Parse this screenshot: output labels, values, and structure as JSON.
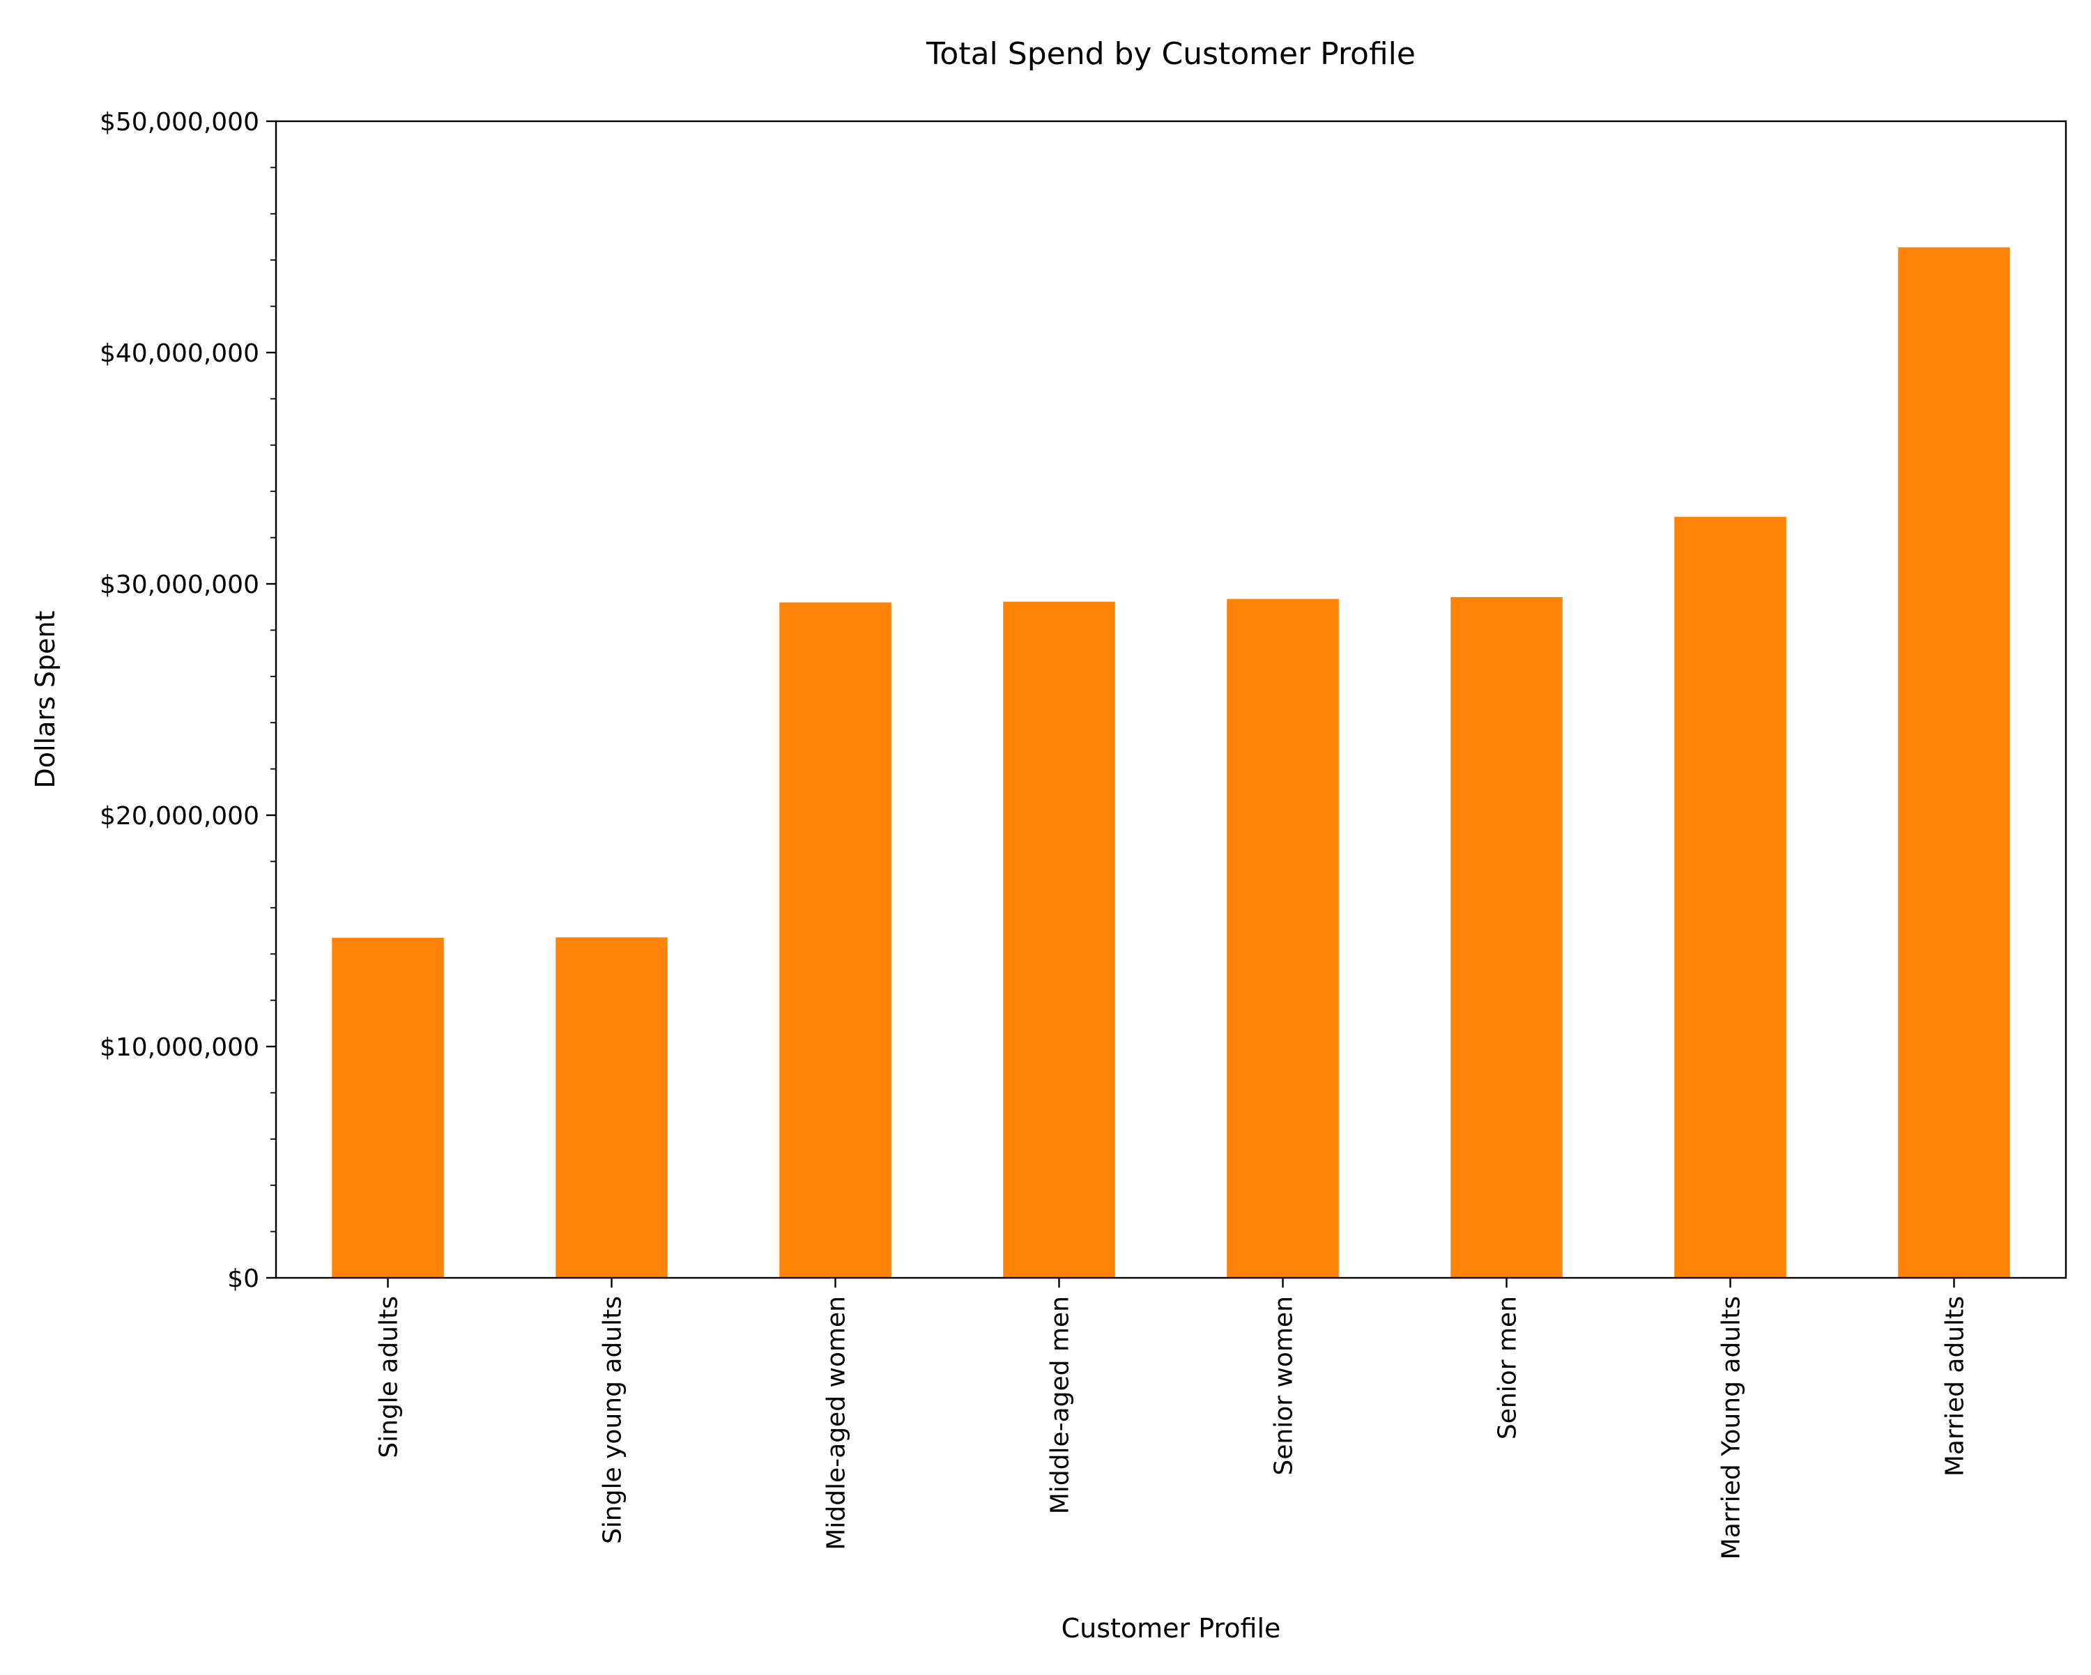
{
  "chart_data": {
    "type": "bar",
    "title": "Total Spend by Customer Profile",
    "xlabel": "Customer Profile",
    "ylabel": "Dollars Spent",
    "categories": [
      "Single adults",
      "Single young adults",
      "Middle-aged women",
      "Middle-aged men",
      "Senior women",
      "Senior men",
      "Married Young adults",
      "Married adults"
    ],
    "values": [
      14700000,
      14720000,
      29200000,
      29230000,
      29350000,
      29430000,
      32900000,
      44550000
    ],
    "ylim": [
      0,
      50000000
    ],
    "yticks": [
      0,
      10000000,
      20000000,
      30000000,
      40000000,
      50000000
    ],
    "ytick_labels": [
      "$0",
      "$10,000,000",
      "$20,000,000",
      "$30,000,000",
      "$40,000,000",
      "$50,000,000"
    ],
    "bar_color": "#ff8306",
    "grid": false,
    "legend": "none"
  }
}
